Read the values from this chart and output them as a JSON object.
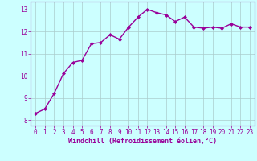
{
  "x": [
    0,
    1,
    2,
    3,
    4,
    5,
    6,
    7,
    8,
    9,
    10,
    11,
    12,
    13,
    14,
    15,
    16,
    17,
    18,
    19,
    20,
    21,
    22,
    23
  ],
  "y": [
    8.3,
    8.5,
    9.2,
    10.1,
    10.6,
    10.7,
    11.45,
    11.5,
    11.85,
    11.65,
    12.2,
    12.65,
    13.0,
    12.85,
    12.75,
    12.45,
    12.65,
    12.2,
    12.15,
    12.2,
    12.15,
    12.35,
    12.2,
    12.2
  ],
  "line_color": "#990099",
  "marker": "D",
  "marker_size": 2.0,
  "background_color": "#ccffff",
  "grid_color": "#aacccc",
  "ylim": [
    7.75,
    13.35
  ],
  "xlim": [
    -0.5,
    23.5
  ],
  "yticks": [
    8,
    9,
    10,
    11,
    12,
    13
  ],
  "xticks": [
    0,
    1,
    2,
    3,
    4,
    5,
    6,
    7,
    8,
    9,
    10,
    11,
    12,
    13,
    14,
    15,
    16,
    17,
    18,
    19,
    20,
    21,
    22,
    23
  ],
  "xlabel": "Windchill (Refroidissement éolien,°C)",
  "xlabel_color": "#990099",
  "tick_color": "#990099",
  "axis_color": "#990099",
  "line_width": 1.0,
  "tick_fontsize": 5.5,
  "xlabel_fontsize": 6.0
}
